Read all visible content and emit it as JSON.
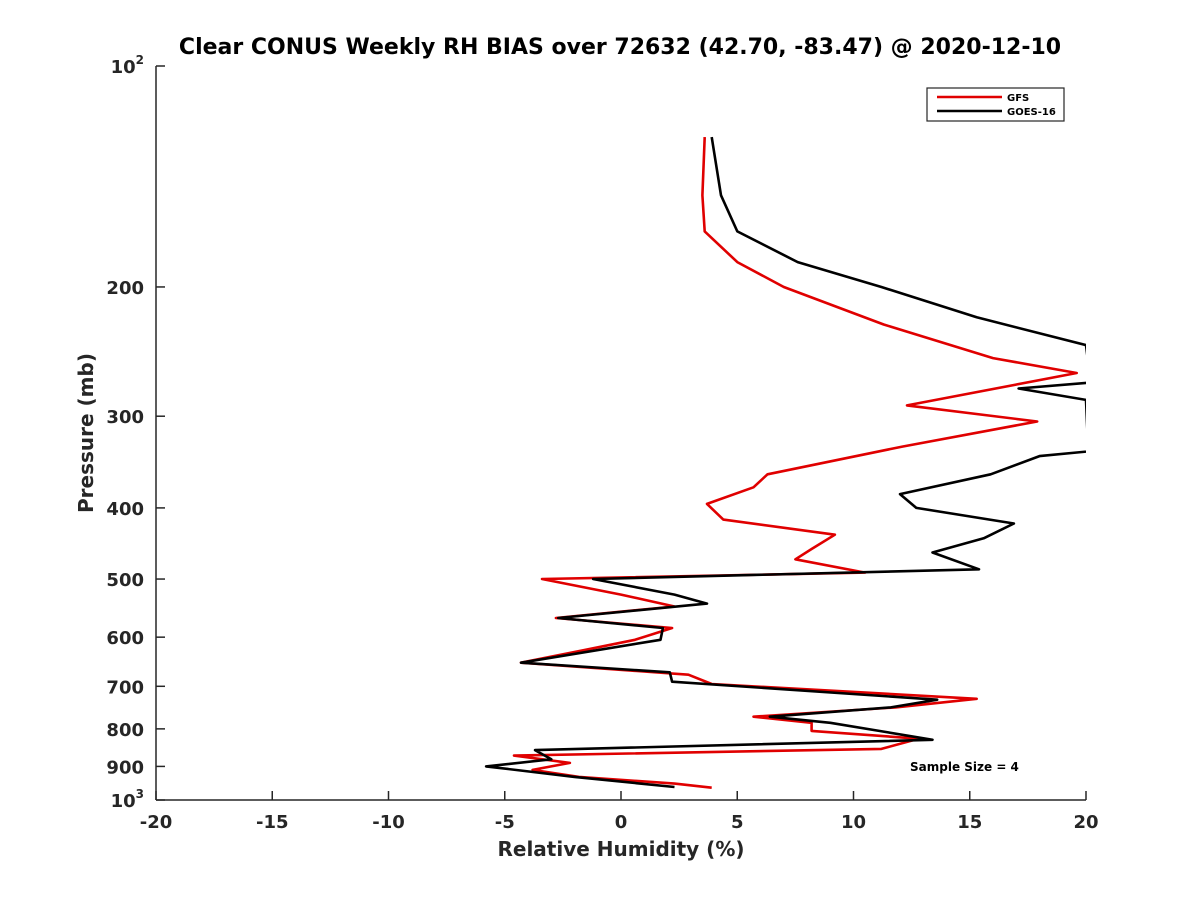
{
  "chart_data": {
    "type": "line",
    "title": "Clear CONUS Weekly RH BIAS over 72632 (42.70, -83.47) @ 2020-12-10",
    "xlabel": "Relative Humidity (%)",
    "ylabel": "Pressure (mb)",
    "xlim": [
      -20,
      20
    ],
    "ylim": [
      100,
      1000
    ],
    "y_scale": "log",
    "y_reversed": true,
    "x_ticks": [
      -20,
      -15,
      -10,
      -5,
      0,
      5,
      10,
      15,
      20
    ],
    "y_ticks": [
      {
        "value": 100,
        "base": "10",
        "exp": "2"
      },
      {
        "value": 200,
        "label": "200"
      },
      {
        "value": 300,
        "label": "300"
      },
      {
        "value": 400,
        "label": "400"
      },
      {
        "value": 500,
        "label": "500"
      },
      {
        "value": 600,
        "label": "600"
      },
      {
        "value": 700,
        "label": "700"
      },
      {
        "value": 800,
        "label": "800"
      },
      {
        "value": 900,
        "label": "900"
      },
      {
        "value": 1000,
        "base": "10",
        "exp": "3"
      }
    ],
    "grid": false,
    "legend_position": "top-right",
    "annotation": "Sample Size = 4",
    "series": [
      {
        "name": "GFS",
        "color": "#e00000",
        "points": [
          [
            3.6,
            125
          ],
          [
            3.5,
            150
          ],
          [
            3.6,
            168
          ],
          [
            5.0,
            185
          ],
          [
            7.0,
            200
          ],
          [
            11.3,
            225
          ],
          [
            16.0,
            250
          ],
          [
            19.6,
            262
          ],
          [
            12.3,
            290
          ],
          [
            17.9,
            305
          ],
          [
            12.1,
            330
          ],
          [
            6.3,
            360
          ],
          [
            5.7,
            375
          ],
          [
            3.7,
            395
          ],
          [
            4.4,
            415
          ],
          [
            9.2,
            435
          ],
          [
            8.2,
            455
          ],
          [
            7.5,
            470
          ],
          [
            10.5,
            490
          ],
          [
            -3.4,
            500
          ],
          [
            0.0,
            525
          ],
          [
            2.3,
            545
          ],
          [
            -2.8,
            565
          ],
          [
            2.2,
            583
          ],
          [
            0.6,
            605
          ],
          [
            -1.6,
            625
          ],
          [
            -4.3,
            650
          ],
          [
            2.9,
            675
          ],
          [
            3.9,
            695
          ],
          [
            15.3,
            728
          ],
          [
            11.8,
            748
          ],
          [
            5.7,
            770
          ],
          [
            8.2,
            785
          ],
          [
            8.2,
            805
          ],
          [
            12.8,
            825
          ],
          [
            11.2,
            852
          ],
          [
            -4.6,
            870
          ],
          [
            -2.2,
            890
          ],
          [
            -3.8,
            910
          ],
          [
            -1.8,
            930
          ],
          [
            2.3,
            950
          ],
          [
            3.9,
            962
          ]
        ]
      },
      {
        "name": "GOES-16",
        "color": "#000000",
        "points": [
          [
            3.9,
            125
          ],
          [
            4.3,
            150
          ],
          [
            5.0,
            168
          ],
          [
            7.6,
            185
          ],
          [
            11.2,
            200
          ],
          [
            15.3,
            220
          ],
          [
            20.0,
            240
          ],
          [
            20.2,
            270
          ],
          [
            17.1,
            275
          ],
          [
            20.0,
            285
          ],
          [
            20.1,
            335
          ],
          [
            18.0,
            340
          ],
          [
            15.9,
            360
          ],
          [
            12.0,
            383
          ],
          [
            12.7,
            400
          ],
          [
            16.9,
            420
          ],
          [
            15.6,
            440
          ],
          [
            13.4,
            460
          ],
          [
            15.4,
            485
          ],
          [
            -1.2,
            500
          ],
          [
            2.3,
            525
          ],
          [
            3.7,
            540
          ],
          [
            -2.7,
            565
          ],
          [
            1.8,
            583
          ],
          [
            1.7,
            605
          ],
          [
            -4.3,
            650
          ],
          [
            2.1,
            670
          ],
          [
            2.2,
            690
          ],
          [
            13.6,
            730
          ],
          [
            11.6,
            748
          ],
          [
            6.4,
            770
          ],
          [
            9.0,
            785
          ],
          [
            11.1,
            805
          ],
          [
            13.4,
            828
          ],
          [
            -3.7,
            855
          ],
          [
            -3.0,
            880
          ],
          [
            -5.8,
            900
          ],
          [
            -2.0,
            930
          ],
          [
            2.3,
            960
          ]
        ]
      }
    ]
  }
}
